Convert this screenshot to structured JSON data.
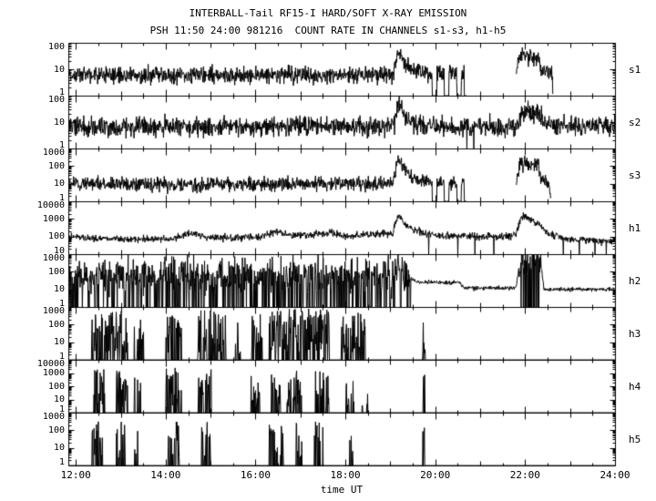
{
  "colors": {
    "line": "#000000",
    "background": "#ffffff",
    "text": "#000000"
  },
  "chart_data": {
    "type": "line",
    "title": "INTERBALL-Tail RF15-I HARD/SOFT X-RAY EMISSION",
    "subtitle": "PSH 11:50 24:00 981216  COUNT RATE IN CHANNELS s1-s3, h1-h5",
    "xlabel": "time UT",
    "x_range": [
      11.833,
      24.0
    ],
    "x_major_ticks": [
      {
        "t": 12,
        "label": "12:00"
      },
      {
        "t": 14,
        "label": "14:00"
      },
      {
        "t": 16,
        "label": "16:00"
      },
      {
        "t": 18,
        "label": "18:00"
      },
      {
        "t": 20,
        "label": "20:00"
      },
      {
        "t": 22,
        "label": "22:00"
      },
      {
        "t": 24,
        "label": "24:00"
      }
    ],
    "x_minor_step_hours": 0.5,
    "y_scale": "log",
    "panels": [
      {
        "name": "s1",
        "ylim": [
          1,
          100
        ],
        "yticks": [
          1,
          10,
          100
        ],
        "noise_dex": 0.16,
        "profile": [
          [
            11.83,
            6
          ],
          [
            19.0,
            6
          ],
          [
            19.08,
            8
          ],
          [
            19.17,
            55
          ],
          [
            19.3,
            18
          ],
          [
            19.55,
            9
          ],
          [
            19.9,
            7
          ],
          [
            20.7,
            6
          ],
          [
            21.8,
            7
          ],
          [
            21.9,
            38
          ],
          [
            22.1,
            32
          ],
          [
            22.3,
            28
          ],
          [
            22.34,
            9
          ],
          [
            22.58,
            8
          ],
          [
            22.62,
            1.6
          ]
        ],
        "dropouts": [
          [
            19.93,
            20.04
          ],
          [
            20.2,
            20.3
          ],
          [
            20.48,
            20.58
          ],
          [
            20.64,
            20.7
          ]
        ],
        "gaps": [
          [
            20.7,
            21.8
          ],
          [
            22.62,
            24.01
          ]
        ],
        "drop_spikes": [],
        "clusters": [],
        "noisy_intervals": []
      },
      {
        "name": "s2",
        "ylim": [
          1,
          100
        ],
        "yticks": [
          1,
          10,
          100
        ],
        "noise_dex": 0.18,
        "profile": [
          [
            11.83,
            7
          ],
          [
            13.0,
            6.5
          ],
          [
            15.0,
            6.5
          ],
          [
            17.0,
            7
          ],
          [
            19.0,
            7
          ],
          [
            19.1,
            9
          ],
          [
            19.17,
            60
          ],
          [
            19.35,
            16
          ],
          [
            19.6,
            9
          ],
          [
            20.0,
            6.5
          ],
          [
            21.5,
            6.5
          ],
          [
            21.85,
            8
          ],
          [
            21.95,
            25
          ],
          [
            22.35,
            20
          ],
          [
            22.5,
            8
          ],
          [
            23.2,
            7
          ],
          [
            24.01,
            7
          ]
        ],
        "dropouts": [],
        "gaps": [],
        "drop_spikes": [
          20.7,
          20.85
        ],
        "clusters": [],
        "noisy_intervals": []
      },
      {
        "name": "s3",
        "ylim": [
          1,
          1000
        ],
        "yticks": [
          1,
          10,
          100,
          1000
        ],
        "noise_dex": 0.2,
        "profile": [
          [
            11.83,
            10
          ],
          [
            14.0,
            9
          ],
          [
            17.0,
            10
          ],
          [
            19.0,
            10
          ],
          [
            19.08,
            14
          ],
          [
            19.17,
            260
          ],
          [
            19.35,
            45
          ],
          [
            19.6,
            16
          ],
          [
            19.9,
            12
          ],
          [
            20.7,
            10
          ],
          [
            21.8,
            12
          ],
          [
            21.9,
            160
          ],
          [
            22.1,
            130
          ],
          [
            22.3,
            110
          ],
          [
            22.35,
            16
          ],
          [
            22.52,
            14
          ],
          [
            22.56,
            2
          ]
        ],
        "dropouts": [
          [
            19.93,
            20.04
          ],
          [
            20.2,
            20.3
          ],
          [
            20.48,
            20.58
          ],
          [
            20.64,
            20.7
          ]
        ],
        "gaps": [
          [
            20.7,
            21.8
          ],
          [
            22.58,
            24.01
          ]
        ],
        "drop_spikes": [],
        "clusters": [],
        "noisy_intervals": []
      },
      {
        "name": "h1",
        "ylim": [
          10,
          10000
        ],
        "yticks": [
          10,
          100,
          1000,
          10000
        ],
        "noise_dex": 0.1,
        "profile": [
          [
            11.83,
            100
          ],
          [
            12.3,
            80
          ],
          [
            13.2,
            70
          ],
          [
            14.2,
            75
          ],
          [
            14.55,
            160
          ],
          [
            14.9,
            90
          ],
          [
            15.5,
            85
          ],
          [
            16.1,
            95
          ],
          [
            16.45,
            200
          ],
          [
            16.8,
            110
          ],
          [
            17.2,
            120
          ],
          [
            17.55,
            170
          ],
          [
            18.0,
            110
          ],
          [
            18.6,
            130
          ],
          [
            19.05,
            150
          ],
          [
            19.17,
            1800
          ],
          [
            19.35,
            400
          ],
          [
            19.7,
            160
          ],
          [
            20.2,
            110
          ],
          [
            21.0,
            100
          ],
          [
            21.78,
            110
          ],
          [
            21.92,
            1500
          ],
          [
            22.15,
            900
          ],
          [
            22.5,
            160
          ],
          [
            22.9,
            70
          ],
          [
            23.5,
            55
          ],
          [
            24.01,
            50
          ]
        ],
        "dropouts": [],
        "gaps": [],
        "drop_spikes": [
          19.85,
          20.5,
          20.88,
          21.3,
          22.85,
          23.2,
          23.55,
          23.8
        ],
        "clusters": [],
        "noisy_intervals": []
      },
      {
        "name": "h2",
        "ylim": [
          1,
          1000
        ],
        "yticks": [
          1,
          10,
          100,
          1000
        ],
        "noise_dex": 0.06,
        "profile": [
          [
            11.83,
            60
          ],
          [
            19.1,
            60
          ],
          [
            19.17,
            500
          ],
          [
            19.3,
            60
          ],
          [
            19.45,
            40
          ],
          [
            19.6,
            25
          ],
          [
            20.55,
            25
          ],
          [
            20.62,
            12
          ],
          [
            21.8,
            12
          ],
          [
            21.87,
            280
          ],
          [
            22.35,
            280
          ],
          [
            22.42,
            10
          ],
          [
            24.01,
            10
          ]
        ],
        "dropouts": [],
        "gaps": [],
        "drop_spikes": [],
        "clusters": [],
        "noisy_intervals": [
          [
            11.83,
            19.45,
            0.5,
            0.28
          ],
          [
            21.87,
            22.35,
            0.55,
            0.3
          ]
        ]
      },
      {
        "name": "h3",
        "ylim": [
          1,
          1000
        ],
        "yticks": [
          1,
          10,
          100,
          1000
        ],
        "flat_bottom": true,
        "noise_dex": 0,
        "profile": [
          [
            11.83,
            1
          ],
          [
            24.01,
            1
          ]
        ],
        "dropouts": [],
        "gaps": [],
        "drop_spikes": [],
        "noisy_intervals": [],
        "clusters": [
          [
            12.35,
            13.15,
            600,
            0.6
          ],
          [
            13.3,
            13.55,
            350,
            0.45
          ],
          [
            14.0,
            14.35,
            500,
            0.55
          ],
          [
            14.7,
            15.35,
            700,
            0.6
          ],
          [
            15.55,
            15.72,
            250,
            0.35
          ],
          [
            15.9,
            16.15,
            450,
            0.5
          ],
          [
            16.3,
            17.65,
            800,
            0.7
          ],
          [
            17.9,
            18.45,
            550,
            0.5
          ],
          [
            19.72,
            19.78,
            280,
            0.85
          ]
        ]
      },
      {
        "name": "h4",
        "ylim": [
          1,
          10000
        ],
        "yticks": [
          1,
          10,
          100,
          1000,
          10000
        ],
        "flat_bottom": true,
        "noise_dex": 0,
        "profile": [
          [
            11.83,
            1
          ],
          [
            24.01,
            1
          ]
        ],
        "dropouts": [],
        "gaps": [],
        "drop_spikes": [],
        "noisy_intervals": [],
        "clusters": [
          [
            12.35,
            12.65,
            2500,
            0.55
          ],
          [
            12.9,
            13.15,
            1500,
            0.5
          ],
          [
            13.3,
            13.45,
            800,
            0.4
          ],
          [
            14.0,
            14.35,
            2500,
            0.55
          ],
          [
            14.7,
            15.05,
            2500,
            0.55
          ],
          [
            15.9,
            16.1,
            900,
            0.4
          ],
          [
            16.3,
            16.55,
            1500,
            0.5
          ],
          [
            16.7,
            17.05,
            1500,
            0.5
          ],
          [
            17.3,
            17.65,
            1500,
            0.5
          ],
          [
            18.0,
            18.2,
            1000,
            0.4
          ],
          [
            18.35,
            18.5,
            800,
            0.35
          ],
          [
            19.72,
            19.78,
            1500,
            0.85
          ]
        ]
      },
      {
        "name": "h5",
        "ylim": [
          1,
          1000
        ],
        "yticks": [
          1,
          10,
          100,
          1000
        ],
        "flat_bottom": true,
        "noise_dex": 0,
        "profile": [
          [
            11.83,
            1
          ],
          [
            24.01,
            1
          ]
        ],
        "dropouts": [],
        "gaps": [],
        "drop_spikes": [],
        "noisy_intervals": [],
        "clusters": [
          [
            12.35,
            12.6,
            400,
            0.5
          ],
          [
            12.9,
            13.1,
            300,
            0.45
          ],
          [
            13.3,
            13.4,
            200,
            0.3
          ],
          [
            14.05,
            14.3,
            400,
            0.5
          ],
          [
            14.8,
            15.0,
            350,
            0.45
          ],
          [
            16.3,
            16.5,
            350,
            0.4
          ],
          [
            16.55,
            16.65,
            250,
            0.3
          ],
          [
            16.9,
            17.05,
            350,
            0.4
          ],
          [
            17.3,
            17.5,
            350,
            0.4
          ],
          [
            18.05,
            18.2,
            250,
            0.3
          ],
          [
            19.72,
            19.77,
            350,
            0.85
          ]
        ]
      }
    ]
  }
}
